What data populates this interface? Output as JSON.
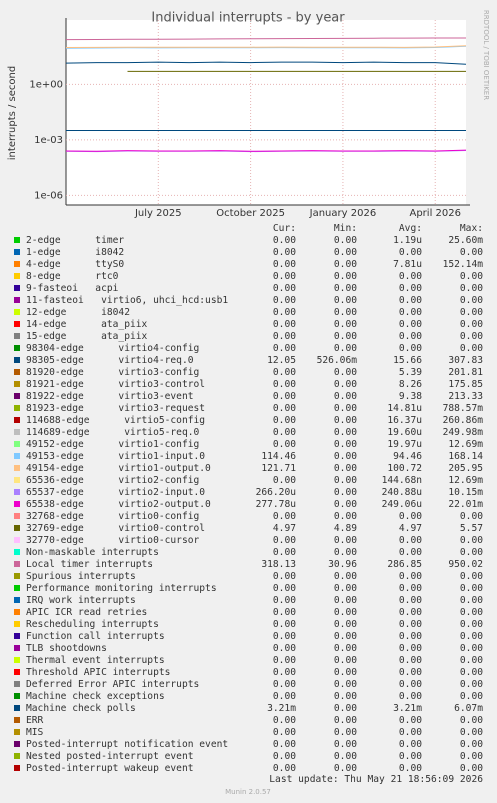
{
  "chart_data": {
    "type": "line",
    "title": "Individual interrupts - by year",
    "y_label": "interrupts / second",
    "side_note": "RRDTOOL / TOBI OETIKER",
    "log_scale": true,
    "grid": true,
    "ylim": [
      3e-07,
      3000
    ],
    "yticks": [
      {
        "value": 1e-06,
        "label": "1e-06"
      },
      {
        "value": 0.001,
        "label": "1e-03"
      },
      {
        "value": 1,
        "label": "1e+00"
      }
    ],
    "xlim": [
      "2025-04",
      "2026-05"
    ],
    "xticks": [
      {
        "value": "2025-07",
        "label": "July 2025"
      },
      {
        "value": "2025-10",
        "label": "October 2025"
      },
      {
        "value": "2026-01",
        "label": "January 2026"
      },
      {
        "value": "2026-04",
        "label": "April 2026"
      }
    ],
    "x": [
      "2025-04",
      "2025-05",
      "2025-06",
      "2025-07",
      "2025-08",
      "2025-09",
      "2025-10",
      "2025-11",
      "2025-12",
      "2026-01",
      "2026-02",
      "2026-03",
      "2026-04",
      "2026-05"
    ],
    "legend_columns": [
      "Cur:",
      "Min:",
      "Avg:",
      "Max:"
    ],
    "series": [
      {
        "name": "2-edge      timer",
        "color": "#00cc00",
        "stats": [
          "0.00",
          "0.00",
          "1.19u",
          "25.60m"
        ]
      },
      {
        "name": "1-edge      i8042",
        "color": "#0066b3",
        "stats": [
          "0.00",
          "0.00",
          "0.00",
          "0.00"
        ]
      },
      {
        "name": "4-edge      ttyS0",
        "color": "#ff8000",
        "stats": [
          "0.00",
          "0.00",
          "7.81u",
          "152.14m"
        ]
      },
      {
        "name": "8-edge      rtc0",
        "color": "#ffcc00",
        "stats": [
          "0.00",
          "0.00",
          "0.00",
          "0.00"
        ]
      },
      {
        "name": "9-fasteoi   acpi",
        "color": "#330099",
        "stats": [
          "0.00",
          "0.00",
          "0.00",
          "0.00"
        ]
      },
      {
        "name": "11-fasteoi   virtio6, uhci_hcd:usb1",
        "color": "#990099",
        "stats": [
          "0.00",
          "0.00",
          "0.00",
          "0.00"
        ]
      },
      {
        "name": "12-edge      i8042",
        "color": "#ccff00",
        "stats": [
          "0.00",
          "0.00",
          "0.00",
          "0.00"
        ]
      },
      {
        "name": "14-edge      ata_piix",
        "color": "#ff0000",
        "stats": [
          "0.00",
          "0.00",
          "0.00",
          "0.00"
        ]
      },
      {
        "name": "15-edge      ata_piix",
        "color": "#808080",
        "stats": [
          "0.00",
          "0.00",
          "0.00",
          "0.00"
        ]
      },
      {
        "name": "98304-edge      virtio4-config",
        "color": "#008f00",
        "stats": [
          "0.00",
          "0.00",
          "0.00",
          "0.00"
        ]
      },
      {
        "name": "98305-edge      virtio4-req.0",
        "color": "#00487d",
        "stats": [
          "12.05",
          "526.06m",
          "15.66",
          "307.83"
        ],
        "values": [
          14,
          15,
          15,
          16,
          15,
          16,
          15,
          16,
          16,
          15,
          16,
          15,
          15,
          12.05
        ]
      },
      {
        "name": "81920-edge      virtio3-config",
        "color": "#b35a00",
        "stats": [
          "0.00",
          "0.00",
          "5.39",
          "201.81"
        ]
      },
      {
        "name": "81921-edge      virtio3-control",
        "color": "#b38f00",
        "stats": [
          "0.00",
          "0.00",
          "8.26",
          "175.85"
        ]
      },
      {
        "name": "81922-edge      virtio3-event",
        "color": "#6b006b",
        "stats": [
          "0.00",
          "0.00",
          "9.38",
          "213.33"
        ]
      },
      {
        "name": "81923-edge      virtio3-request",
        "color": "#8fb300",
        "stats": [
          "0.00",
          "0.00",
          "14.81u",
          "788.57m"
        ]
      },
      {
        "name": "114688-edge      virtio5-config",
        "color": "#b30000",
        "stats": [
          "0.00",
          "0.00",
          "16.37u",
          "260.86m"
        ]
      },
      {
        "name": "114689-edge      virtio5-req.0",
        "color": "#bebebe",
        "stats": [
          "0.00",
          "0.00",
          "19.60u",
          "249.98m"
        ]
      },
      {
        "name": "49152-edge      virtio1-config",
        "color": "#80ff80",
        "stats": [
          "0.00",
          "0.00",
          "19.97u",
          "12.69m"
        ]
      },
      {
        "name": "49153-edge      virtio1-input.0",
        "color": "#80c9ff",
        "stats": [
          "114.46",
          "0.00",
          "94.46",
          "168.14"
        ],
        "values": [
          90,
          92,
          95,
          93,
          96,
          94,
          95,
          97,
          94,
          96,
          95,
          93,
          98,
          114.46
        ]
      },
      {
        "name": "49154-edge      virtio1-output.0",
        "color": "#ffc080",
        "stats": [
          "121.71",
          "0.00",
          "100.72",
          "205.95"
        ],
        "values": [
          98,
          99,
          101,
          100,
          102,
          100,
          101,
          103,
          100,
          102,
          101,
          99,
          104,
          121.71
        ]
      },
      {
        "name": "65536-edge      virtio2-config",
        "color": "#ffe680",
        "stats": [
          "0.00",
          "0.00",
          "144.68n",
          "12.69m"
        ]
      },
      {
        "name": "65537-edge      virtio2-input.0",
        "color": "#aa80ff",
        "stats": [
          "266.20u",
          "0.00",
          "240.88u",
          "10.15m"
        ],
        "values": [
          0.00024,
          0.00023,
          0.00025,
          0.00024,
          0.00024,
          0.00025,
          0.00023,
          0.00024,
          0.00025,
          0.00024,
          0.00024,
          0.00025,
          0.00024,
          0.000266
        ]
      },
      {
        "name": "65538-edge      virtio2-output.0",
        "color": "#ee00cc",
        "stats": [
          "277.78u",
          "0.00",
          "249.06u",
          "22.01m"
        ],
        "values": [
          0.00025,
          0.00024,
          0.00026,
          0.00025,
          0.00025,
          0.00026,
          0.00024,
          0.00025,
          0.00026,
          0.00025,
          0.00025,
          0.00026,
          0.00025,
          0.000278
        ]
      },
      {
        "name": "32768-edge      virtio0-config",
        "color": "#ff8080",
        "stats": [
          "0.00",
          "0.00",
          "0.00",
          "0.00"
        ]
      },
      {
        "name": "32769-edge      virtio0-control",
        "color": "#666600",
        "stats": [
          "4.97",
          "4.89",
          "4.97",
          "5.57"
        ],
        "values": [
          null,
          null,
          4.97,
          4.97,
          4.97,
          4.97,
          4.97,
          4.97,
          4.97,
          4.97,
          4.97,
          4.97,
          4.97,
          4.97
        ]
      },
      {
        "name": "32770-edge      virtio0-cursor",
        "color": "#ffbfff",
        "stats": [
          "0.00",
          "0.00",
          "0.00",
          "0.00"
        ]
      },
      {
        "name": "Non-maskable interrupts",
        "color": "#00ffcc",
        "stats": [
          "0.00",
          "0.00",
          "0.00",
          "0.00"
        ]
      },
      {
        "name": "Local timer interrupts",
        "color": "#cc6699",
        "stats": [
          "318.13",
          "30.96",
          "286.85",
          "950.02"
        ],
        "values": [
          260,
          265,
          270,
          275,
          280,
          285,
          290,
          295,
          300,
          305,
          310,
          315,
          320,
          318.13
        ]
      },
      {
        "name": "Spurious interrupts",
        "color": "#999900",
        "stats": [
          "0.00",
          "0.00",
          "0.00",
          "0.00"
        ]
      },
      {
        "name": "Performance monitoring interrupts",
        "color": "#00cc00",
        "stats": [
          "0.00",
          "0.00",
          "0.00",
          "0.00"
        ]
      },
      {
        "name": "IRQ work interrupts",
        "color": "#0066b3",
        "stats": [
          "0.00",
          "0.00",
          "0.00",
          "0.00"
        ]
      },
      {
        "name": "APIC ICR read retries",
        "color": "#ff8000",
        "stats": [
          "0.00",
          "0.00",
          "0.00",
          "0.00"
        ]
      },
      {
        "name": "Rescheduling interrupts",
        "color": "#ffcc00",
        "stats": [
          "0.00",
          "0.00",
          "0.00",
          "0.00"
        ]
      },
      {
        "name": "Function call interrupts",
        "color": "#330099",
        "stats": [
          "0.00",
          "0.00",
          "0.00",
          "0.00"
        ]
      },
      {
        "name": "TLB shootdowns",
        "color": "#990099",
        "stats": [
          "0.00",
          "0.00",
          "0.00",
          "0.00"
        ]
      },
      {
        "name": "Thermal event interrupts",
        "color": "#ccff00",
        "stats": [
          "0.00",
          "0.00",
          "0.00",
          "0.00"
        ]
      },
      {
        "name": "Threshold APIC interrupts",
        "color": "#ff0000",
        "stats": [
          "0.00",
          "0.00",
          "0.00",
          "0.00"
        ]
      },
      {
        "name": "Deferred Error APIC interrupts",
        "color": "#808080",
        "stats": [
          "0.00",
          "0.00",
          "0.00",
          "0.00"
        ]
      },
      {
        "name": "Machine check exceptions",
        "color": "#008f00",
        "stats": [
          "0.00",
          "0.00",
          "0.00",
          "0.00"
        ]
      },
      {
        "name": "Machine check polls",
        "color": "#00487d",
        "stats": [
          "3.21m",
          "0.00",
          "3.21m",
          "6.07m"
        ],
        "values": [
          0.0032,
          0.0032,
          0.0032,
          0.0032,
          0.0032,
          0.0032,
          0.0032,
          0.0032,
          0.0032,
          0.0032,
          0.0032,
          0.0032,
          0.0032,
          0.00321
        ]
      },
      {
        "name": "ERR",
        "color": "#b35a00",
        "stats": [
          "0.00",
          "0.00",
          "0.00",
          "0.00"
        ]
      },
      {
        "name": "MIS",
        "color": "#b38f00",
        "stats": [
          "0.00",
          "0.00",
          "0.00",
          "0.00"
        ]
      },
      {
        "name": "Posted-interrupt notification event",
        "color": "#6b006b",
        "stats": [
          "0.00",
          "0.00",
          "0.00",
          "0.00"
        ]
      },
      {
        "name": "Nested posted-interrupt event",
        "color": "#8fb300",
        "stats": [
          "0.00",
          "0.00",
          "0.00",
          "0.00"
        ]
      },
      {
        "name": "Posted-interrupt wakeup event",
        "color": "#b30000",
        "stats": [
          "0.00",
          "0.00",
          "0.00",
          "0.00"
        ]
      }
    ],
    "last_update": "Last update: Thu May 21 18:56:09 2026",
    "generator": "Munin 2.0.57"
  }
}
